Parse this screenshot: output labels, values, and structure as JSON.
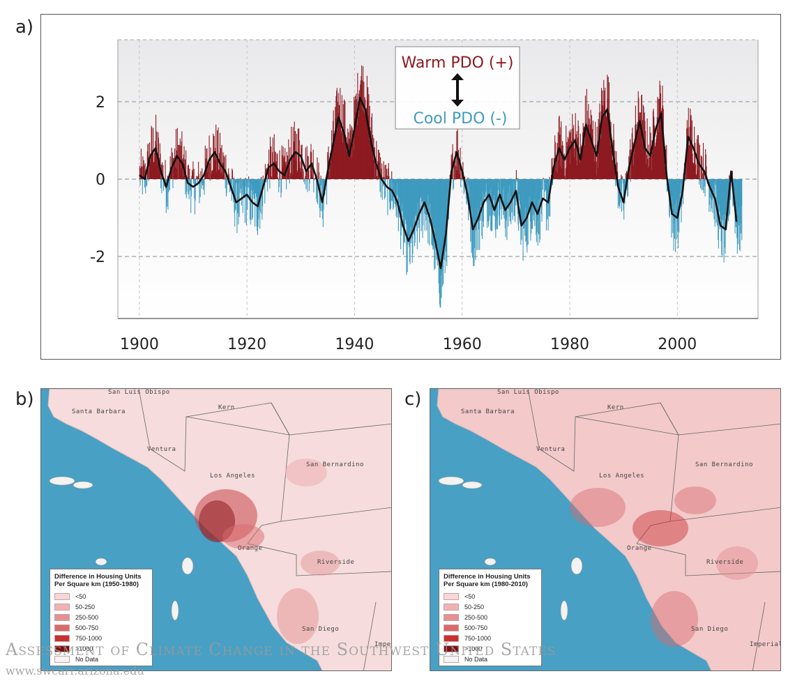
{
  "panels": {
    "a": "a)",
    "b": "b)",
    "c": "c)"
  },
  "chart_data": {
    "type": "bar",
    "x_ticks": [
      1900,
      1920,
      1940,
      1960,
      1980,
      2000
    ],
    "y_ticks": [
      2,
      0,
      -2
    ],
    "xlim": [
      1896,
      2015
    ],
    "ylim": [
      -3.6,
      3.6
    ],
    "grid": true,
    "annotations": {
      "warm": "Warm PDO (+)",
      "cool": "Cool PDO (-)"
    },
    "colors": {
      "warm": "#8c1a20",
      "cool": "#3f9bbf",
      "smooth": "#111111"
    },
    "smoothed_series": {
      "x": [
        1900,
        1901,
        1902,
        1903,
        1904,
        1905,
        1906,
        1907,
        1908,
        1909,
        1910,
        1911,
        1912,
        1913,
        1914,
        1915,
        1916,
        1917,
        1918,
        1919,
        1920,
        1921,
        1922,
        1923,
        1924,
        1925,
        1926,
        1927,
        1928,
        1929,
        1930,
        1931,
        1932,
        1933,
        1934,
        1935,
        1936,
        1937,
        1938,
        1939,
        1940,
        1941,
        1942,
        1943,
        1944,
        1945,
        1946,
        1947,
        1948,
        1949,
        1950,
        1951,
        1952,
        1953,
        1954,
        1955,
        1956,
        1957,
        1958,
        1959,
        1960,
        1961,
        1962,
        1963,
        1964,
        1965,
        1966,
        1967,
        1968,
        1969,
        1970,
        1971,
        1972,
        1973,
        1974,
        1975,
        1976,
        1977,
        1978,
        1979,
        1980,
        1981,
        1982,
        1983,
        1984,
        1985,
        1986,
        1987,
        1988,
        1989,
        1990,
        1991,
        1992,
        1993,
        1994,
        1995,
        1996,
        1997,
        1998,
        1999,
        2000,
        2001,
        2002,
        2003,
        2004,
        2005,
        2006,
        2007,
        2008,
        2009,
        2010,
        2011
      ],
      "y": [
        0.1,
        0.0,
        0.6,
        0.8,
        0.2,
        -0.2,
        0.3,
        0.6,
        0.4,
        -0.1,
        -0.2,
        -0.1,
        0.1,
        0.5,
        0.7,
        0.4,
        0.2,
        -0.2,
        -0.6,
        -0.5,
        -0.4,
        -0.6,
        -0.7,
        -0.2,
        0.3,
        0.4,
        0.2,
        0.1,
        0.5,
        0.7,
        0.6,
        0.2,
        0.4,
        0.0,
        -0.6,
        0.2,
        0.9,
        1.6,
        1.2,
        0.6,
        1.3,
        2.1,
        1.8,
        1.0,
        0.4,
        0.0,
        -0.2,
        -0.3,
        -0.6,
        -1.2,
        -1.6,
        -1.3,
        -0.9,
        -0.6,
        -1.0,
        -1.6,
        -2.3,
        -1.4,
        0.2,
        0.7,
        0.2,
        -0.4,
        -1.3,
        -1.0,
        -0.6,
        -0.4,
        -0.8,
        -0.4,
        -0.8,
        -0.6,
        -0.3,
        -1.2,
        -1.0,
        -0.6,
        -0.9,
        -0.5,
        -0.6,
        0.3,
        0.8,
        0.5,
        0.8,
        1.0,
        0.5,
        1.4,
        1.0,
        0.6,
        1.6,
        1.8,
        0.7,
        -0.2,
        -0.6,
        0.3,
        0.9,
        1.5,
        0.8,
        0.6,
        1.3,
        1.7,
        0.1,
        -0.9,
        -1.0,
        -0.3,
        1.1,
        0.8,
        0.4,
        0.2,
        -0.2,
        -0.5,
        -1.2,
        -1.3,
        0.2,
        -1.1
      ]
    }
  },
  "maps": [
    {
      "id": "b",
      "legend_title_1": "Difference in Housing Units",
      "legend_title_2": "Per Square km (1950-1980)",
      "legend_items": [
        {
          "label": "<50",
          "color": "#f7d7d8"
        },
        {
          "label": "50-250",
          "color": "#f0b3b5"
        },
        {
          "label": "250-500",
          "color": "#e39193"
        },
        {
          "label": "500-750",
          "color": "#d96a6c"
        },
        {
          "label": "750-1000",
          "color": "#c92f31"
        },
        {
          "label": ">1000",
          "color": "#7d1114"
        },
        {
          "label": "No Data",
          "color": "#f4f4f4"
        }
      ],
      "places": {
        "slo": "San Luis Obispo",
        "sb": "Santa Barbara",
        "kern": "Kern",
        "ventura": "Ventura",
        "sbern": "San Bernardino",
        "la": "Los Angeles",
        "orange": "Orange",
        "riverside": "Riverside",
        "sd": "San Diego",
        "imperial": "Imperial"
      }
    },
    {
      "id": "c",
      "legend_title_1": "Difference in Housing Units",
      "legend_title_2": "Per Square km (1980-2010)",
      "legend_items": [
        {
          "label": "<50",
          "color": "#f7d7d8"
        },
        {
          "label": "50-250",
          "color": "#f0b3b5"
        },
        {
          "label": "250-500",
          "color": "#e39193"
        },
        {
          "label": "500-750",
          "color": "#d96a6c"
        },
        {
          "label": "750-1000",
          "color": "#c92f31"
        },
        {
          "label": ">1000",
          "color": "#7d1114"
        },
        {
          "label": "No Data",
          "color": "#f4f4f4"
        }
      ],
      "places": {
        "slo": "San Luis Obispo",
        "sb": "Santa Barbara",
        "kern": "Kern",
        "ventura": "Ventura",
        "sbern": "San Bernardino",
        "la": "Los Angeles",
        "orange": "Orange",
        "riverside": "Riverside",
        "sd": "San Diego",
        "imperial": "Imperial"
      }
    }
  ],
  "watermark": {
    "line1": "Assessment of Climate Change in the Southwest United States",
    "line2": "www.swcarr.arizona.edu"
  }
}
